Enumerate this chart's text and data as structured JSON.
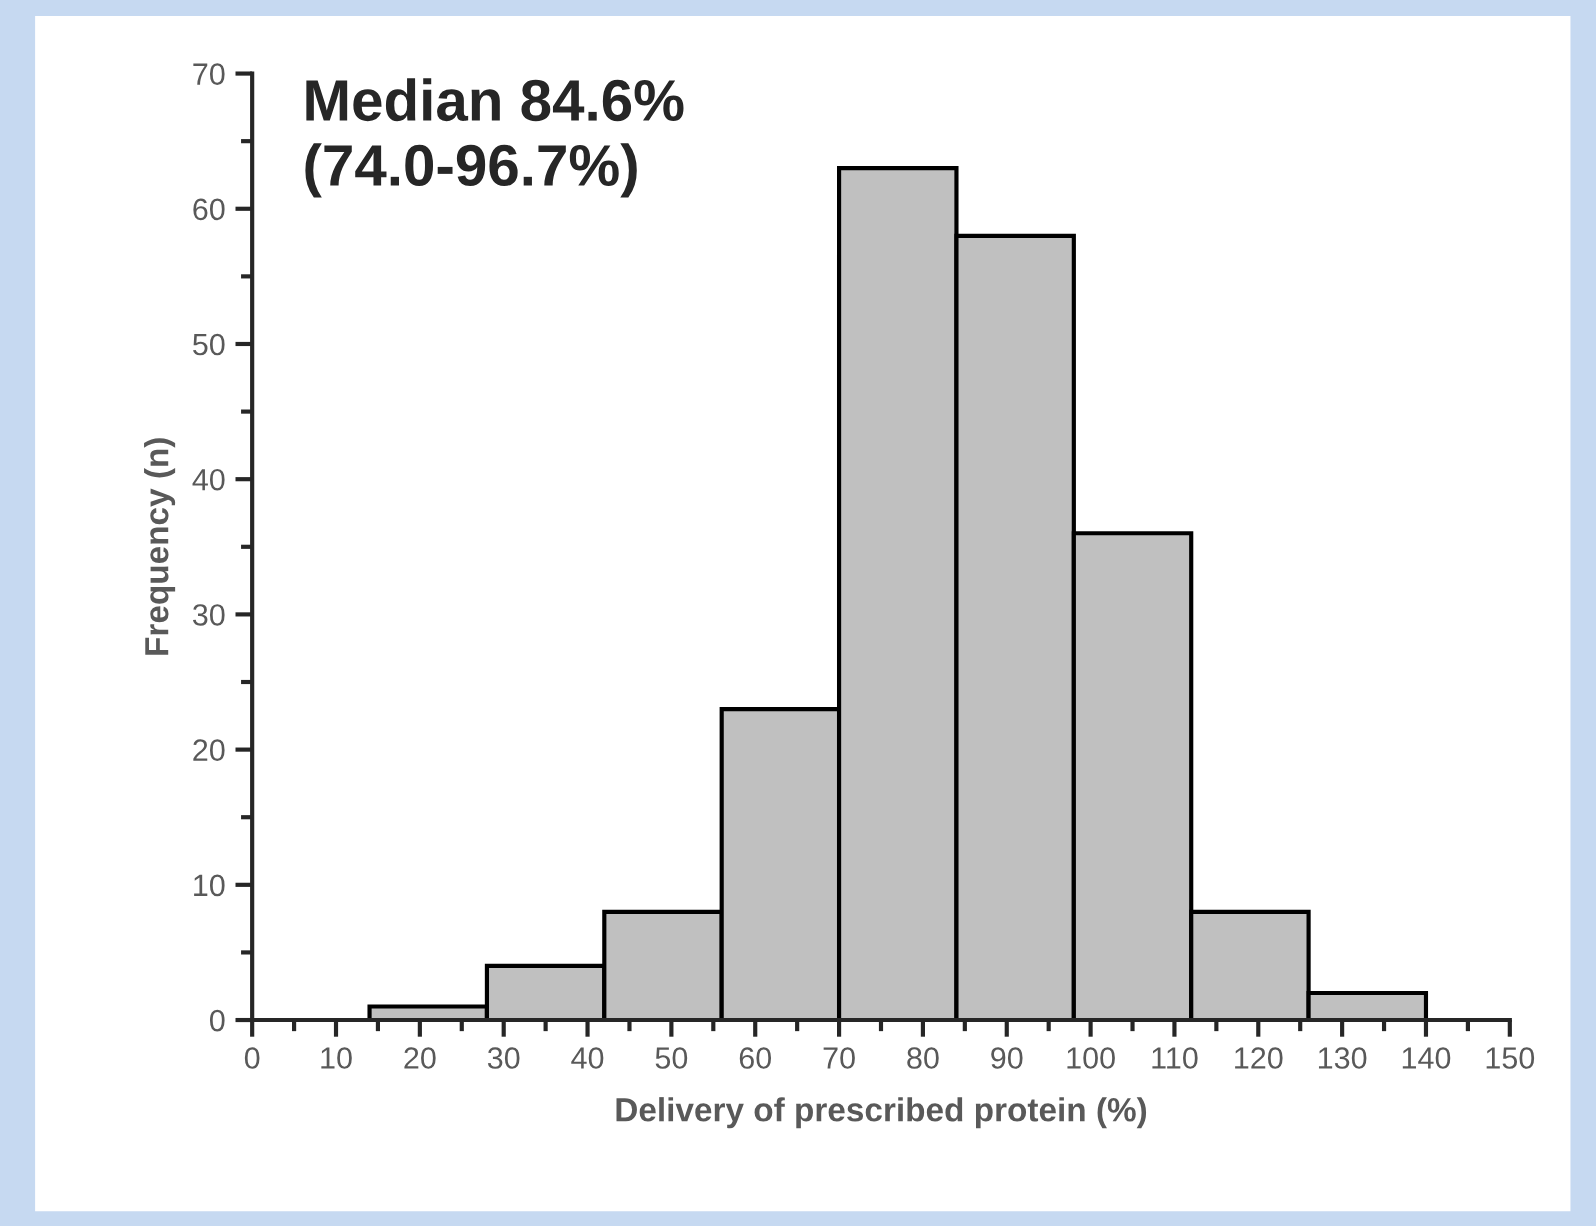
{
  "chart_data": {
    "type": "histogram",
    "xlabel": "Delivery of prescribed protein (%)",
    "ylabel": "Frequency (n)",
    "bins": [
      14,
      28,
      42,
      56,
      70,
      84,
      98,
      112,
      126,
      140
    ],
    "values": [
      1,
      4,
      8,
      23,
      63,
      58,
      36,
      8,
      2
    ],
    "color": "#c0c0c0",
    "xlim": [
      0,
      150
    ],
    "ylim": [
      0,
      70
    ],
    "xticks": [
      0,
      {
        "value": 5,
        "label": null
      },
      10,
      {
        "value": 15,
        "label": null
      },
      20,
      {
        "value": 25,
        "label": null
      },
      30,
      {
        "value": 35,
        "label": null
      },
      40,
      {
        "value": 45,
        "label": null
      },
      50,
      {
        "value": 55,
        "label": null
      },
      60,
      {
        "value": 65,
        "label": null
      },
      70,
      {
        "value": 75,
        "label": null
      },
      80,
      {
        "value": 85,
        "label": null
      },
      90,
      {
        "value": 95,
        "label": null
      },
      100,
      {
        "value": 105,
        "label": null
      },
      110,
      {
        "value": 115,
        "label": null
      },
      120,
      {
        "value": 125,
        "label": null
      },
      130,
      {
        "value": 135,
        "label": null
      },
      140,
      {
        "value": 145,
        "label": null
      },
      150
    ],
    "yticks": [
      0,
      {
        "value": 5,
        "label": null
      },
      10,
      {
        "value": 15,
        "label": null
      },
      20,
      {
        "value": 25,
        "label": null
      },
      30,
      {
        "value": 35,
        "label": null
      },
      40,
      {
        "value": 45,
        "label": null
      },
      50,
      {
        "value": 55,
        "label": null
      },
      60,
      {
        "value": 65,
        "label": null
      },
      70
    ],
    "annotations": [
      "Median 84.6%\n(74.0-96.7%)"
    ],
    "grid": false,
    "legend": false
  }
}
